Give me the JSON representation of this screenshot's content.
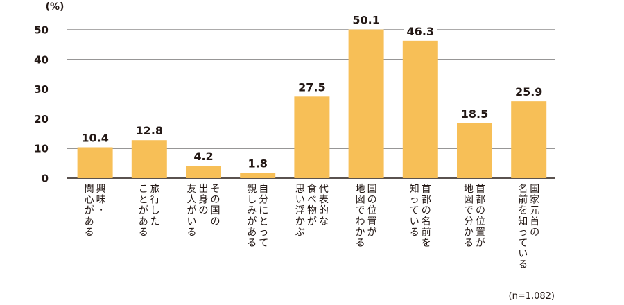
{
  "chart_data": {
    "type": "bar",
    "unit": "(%)",
    "categories": [
      [
        "興味・",
        "関心がある"
      ],
      [
        "旅行した",
        "ことがある"
      ],
      [
        "その国の",
        "出身の",
        "友人がいる"
      ],
      [
        "自分にとって",
        "親しみがある"
      ],
      [
        "代表的な",
        "食べ物が",
        "思い浮かぶ"
      ],
      [
        "国の位置が",
        "地図でわかる"
      ],
      [
        "首都の名前を",
        "知っている"
      ],
      [
        "首都の位置が",
        "地図で分かる"
      ],
      [
        "国家元首の",
        "名前を知っている"
      ]
    ],
    "values": [
      10.4,
      12.8,
      4.2,
      1.8,
      27.5,
      50.1,
      46.3,
      18.5,
      25.9
    ],
    "value_labels": [
      "10.4",
      "12.8",
      "4.2",
      "1.8",
      "27.5",
      "50.1",
      "46.3",
      "18.5",
      "25.9"
    ],
    "ylim": [
      0,
      50
    ],
    "yticks": [
      0,
      10,
      20,
      30,
      40,
      50
    ],
    "grid": true,
    "colors": {
      "bar": "#F7BF57",
      "grid": "#595757",
      "axis": "#231815",
      "text": "#231815"
    }
  },
  "note": "(n=1,082)"
}
